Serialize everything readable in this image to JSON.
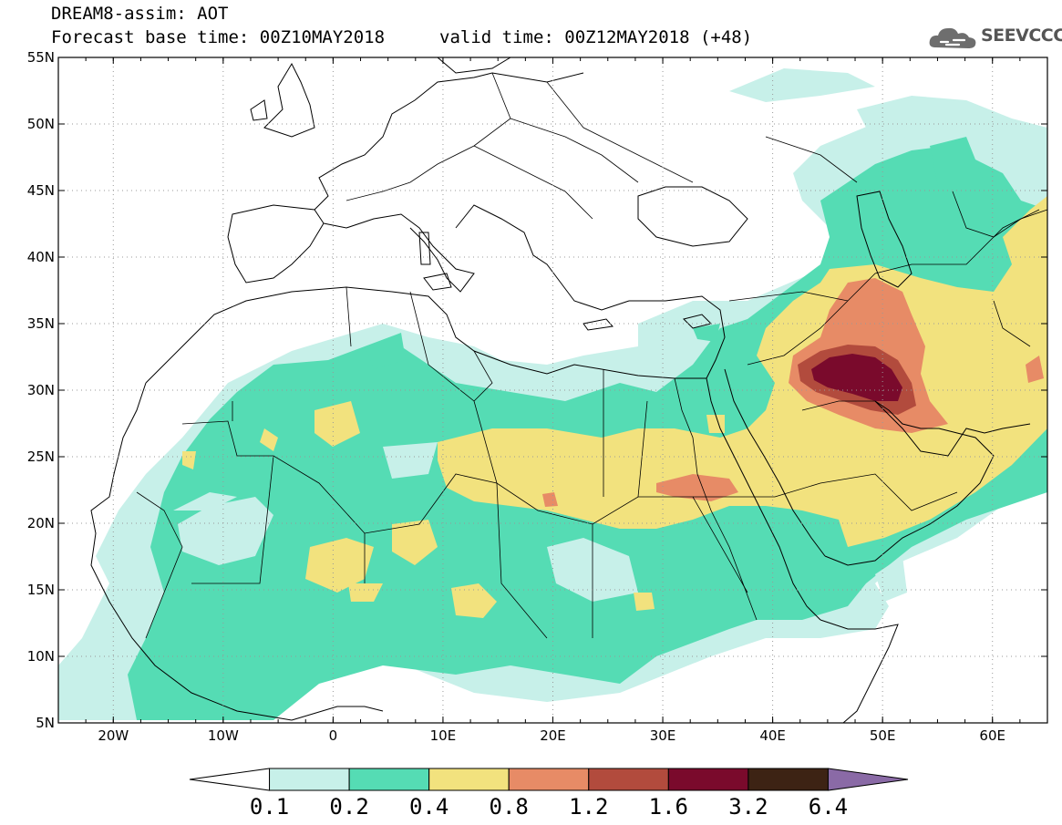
{
  "header": {
    "title": "DREAM8-assim: AOT",
    "base_time": "Forecast base time: 00Z10MAY2018",
    "valid_time": "valid time: 00Z12MAY2018 (+48)",
    "logo_text": "SEEVCCC",
    "logo_icon": "cloud-icon"
  },
  "map": {
    "projection": "lat-lon",
    "lon_range": [
      -25,
      65
    ],
    "lat_range": [
      5,
      55
    ],
    "grid": "dotted",
    "lat_ticks": [
      {
        "value": 55,
        "label": "55N"
      },
      {
        "value": 50,
        "label": "50N"
      },
      {
        "value": 45,
        "label": "45N"
      },
      {
        "value": 40,
        "label": "40N"
      },
      {
        "value": 35,
        "label": "35N"
      },
      {
        "value": 30,
        "label": "30N"
      },
      {
        "value": 25,
        "label": "25N"
      },
      {
        "value": 20,
        "label": "20N"
      },
      {
        "value": 15,
        "label": "15N"
      },
      {
        "value": 10,
        "label": "10N"
      },
      {
        "value": 5,
        "label": "5N"
      }
    ],
    "lon_ticks": [
      {
        "value": -20,
        "label": "20W"
      },
      {
        "value": -10,
        "label": "10W"
      },
      {
        "value": 0,
        "label": "0"
      },
      {
        "value": 10,
        "label": "10E"
      },
      {
        "value": 20,
        "label": "20E"
      },
      {
        "value": 30,
        "label": "30E"
      },
      {
        "value": 40,
        "label": "40E"
      },
      {
        "value": 50,
        "label": "50E"
      },
      {
        "value": 60,
        "label": "60E"
      }
    ],
    "field": "Aerosol optical thickness, dust plume over the Sahara and a maximum over Iraq / Kuwait (> 3.2)"
  },
  "colorbar": {
    "levels": [
      "0.1",
      "0.2",
      "0.4",
      "0.8",
      "1.2",
      "1.6",
      "3.2",
      "6.4"
    ],
    "colors": [
      "#ffffff",
      "#c7f0e9",
      "#55dcb4",
      "#f2e27e",
      "#e78b66",
      "#b24b3d",
      "#7a0a2c",
      "#3d2314",
      "#8a6aa6"
    ]
  }
}
